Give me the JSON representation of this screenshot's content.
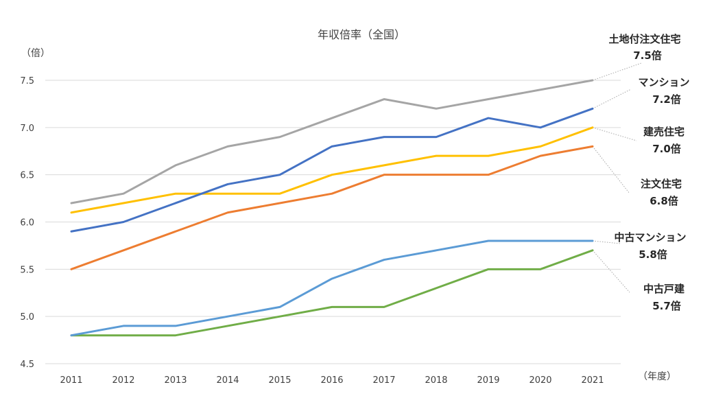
{
  "chart_data": {
    "type": "line",
    "title": "年収倍率（全国）",
    "ylabel": "（倍）",
    "xlabel": "（年度）",
    "ylim": [
      4.5,
      7.5
    ],
    "yticks": [
      "4.5",
      "5.0",
      "5.5",
      "6.0",
      "6.5",
      "7.0",
      "7.5"
    ],
    "grid": true,
    "categories": [
      "2011",
      "2012",
      "2013",
      "2014",
      "2015",
      "2016",
      "2017",
      "2018",
      "2019",
      "2020",
      "2021"
    ],
    "series": [
      {
        "name": "土地付注文住宅",
        "end_label": "7.5倍",
        "color": "#a5a5a5",
        "values": [
          6.2,
          6.3,
          6.6,
          6.8,
          6.9,
          7.1,
          7.3,
          7.2,
          7.3,
          7.4,
          7.5
        ]
      },
      {
        "name": "マンション",
        "end_label": "7.2倍",
        "color": "#4472c4",
        "values": [
          5.9,
          6.0,
          6.2,
          6.4,
          6.5,
          6.8,
          6.9,
          6.9,
          7.1,
          7.0,
          7.2
        ]
      },
      {
        "name": "建売住宅",
        "end_label": "7.0倍",
        "color": "#ffc000",
        "values": [
          6.1,
          6.2,
          6.3,
          6.3,
          6.3,
          6.5,
          6.6,
          6.7,
          6.7,
          6.8,
          7.0
        ]
      },
      {
        "name": "注文住宅",
        "end_label": "6.8倍",
        "color": "#ed7d31",
        "values": [
          5.5,
          5.7,
          5.9,
          6.1,
          6.2,
          6.3,
          6.5,
          6.5,
          6.5,
          6.7,
          6.8
        ]
      },
      {
        "name": "中古マンション",
        "end_label": "5.8倍",
        "color": "#5b9bd5",
        "values": [
          4.8,
          4.9,
          4.9,
          5.0,
          5.1,
          5.4,
          5.6,
          5.7,
          5.8,
          5.8,
          5.8
        ]
      },
      {
        "name": "中古戸建",
        "end_label": "5.7倍",
        "color": "#70ad47",
        "values": [
          4.8,
          4.8,
          4.8,
          4.9,
          5.0,
          5.1,
          5.1,
          5.3,
          5.5,
          5.5,
          5.7
        ]
      }
    ]
  }
}
